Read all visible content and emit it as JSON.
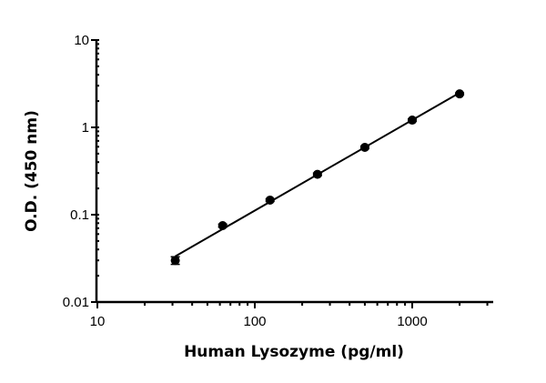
{
  "chart_data": {
    "type": "scatter",
    "title": "",
    "xlabel": "Human Lysozyme (pg/ml)",
    "ylabel": "O.D. (450 nm)",
    "xscale": "log",
    "yscale": "log",
    "xlim": [
      10,
      3000
    ],
    "ylim": [
      0.01,
      10
    ],
    "xticks": [
      10,
      100,
      1000
    ],
    "xtick_labels": [
      "10",
      "100",
      "1000"
    ],
    "yticks": [
      0.01,
      0.1,
      1,
      10
    ],
    "ytick_labels": [
      "0.01",
      "0.1",
      "1",
      "10"
    ],
    "grid": false,
    "fit_line": true,
    "marker_color": "#000000",
    "series": [
      {
        "x": [
          31.25,
          62.5,
          125,
          250,
          500,
          1000,
          2000
        ],
        "y": [
          0.03,
          0.075,
          0.147,
          0.29,
          0.59,
          1.21,
          2.42
        ],
        "error": [
          0.003,
          0.003,
          0.005,
          0.01,
          0.02,
          0.04,
          0.06
        ]
      }
    ]
  }
}
